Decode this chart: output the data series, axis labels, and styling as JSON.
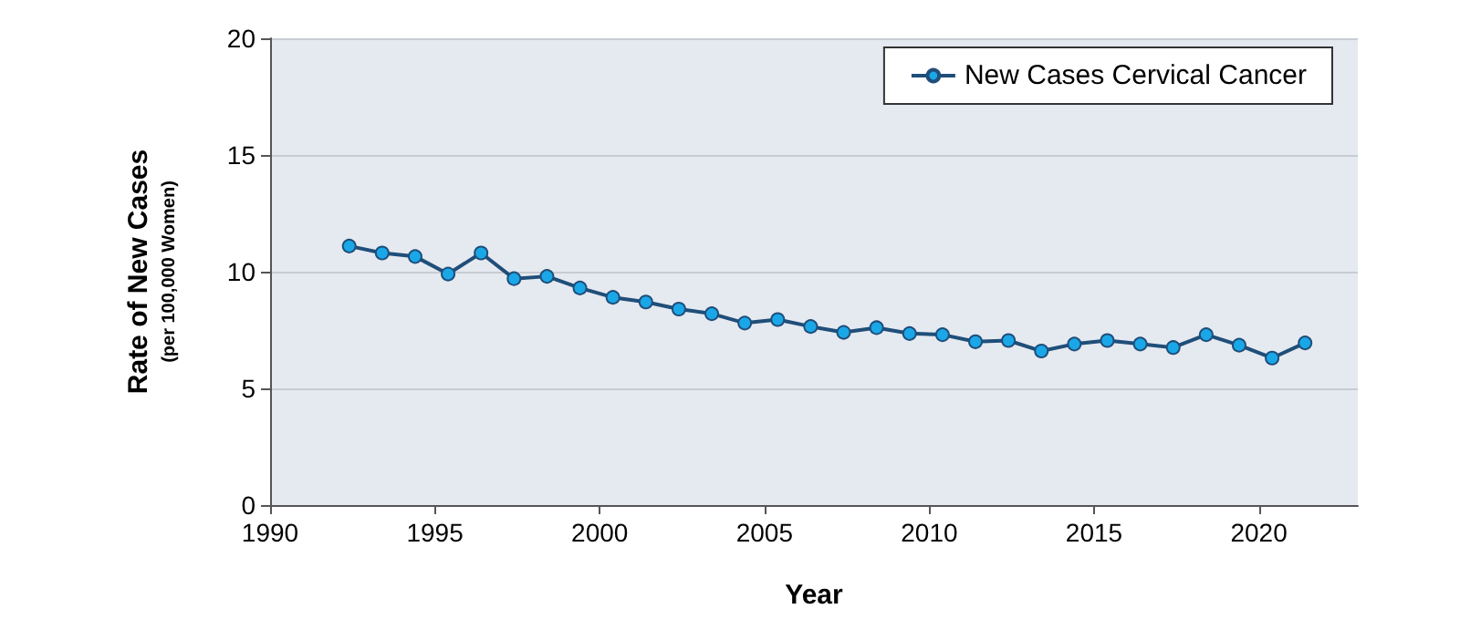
{
  "chart_data": {
    "type": "line",
    "xlabel": "Year",
    "ylabel": "Rate of New Cases\n(per 100,000 Women)",
    "x": [
      1992.4,
      1993.4,
      1994.4,
      1995.4,
      1996.4,
      1997.4,
      1998.4,
      1999.4,
      2000.4,
      2001.4,
      2002.4,
      2003.4,
      2004.4,
      2005.4,
      2006.4,
      2007.4,
      2008.4,
      2009.4,
      2010.4,
      2011.4,
      2012.4,
      2013.4,
      2014.4,
      2015.4,
      2016.4,
      2017.4,
      2018.4,
      2019.4,
      2020.4,
      2021.4
    ],
    "series": [
      {
        "name": "New Cases Cervical Cancer",
        "color": "#1f4e79",
        "values": [
          11.1,
          10.8,
          10.65,
          9.9,
          10.8,
          9.7,
          9.8,
          9.3,
          8.9,
          8.7,
          8.4,
          8.2,
          7.8,
          7.95,
          7.65,
          7.4,
          7.6,
          7.35,
          7.3,
          7.0,
          7.05,
          6.6,
          6.9,
          7.05,
          6.9,
          6.75,
          7.3,
          6.85,
          6.3,
          6.95
        ]
      }
    ],
    "xlim": [
      1990,
      2023
    ],
    "xticks": [
      1990,
      1995,
      2000,
      2005,
      2010,
      2015,
      2020
    ],
    "ylim": [
      0,
      20
    ],
    "yticks": [
      0,
      5,
      10,
      15,
      20
    ],
    "grid": "y",
    "legend": "top right",
    "marker": "circle",
    "line_style": "solid"
  }
}
